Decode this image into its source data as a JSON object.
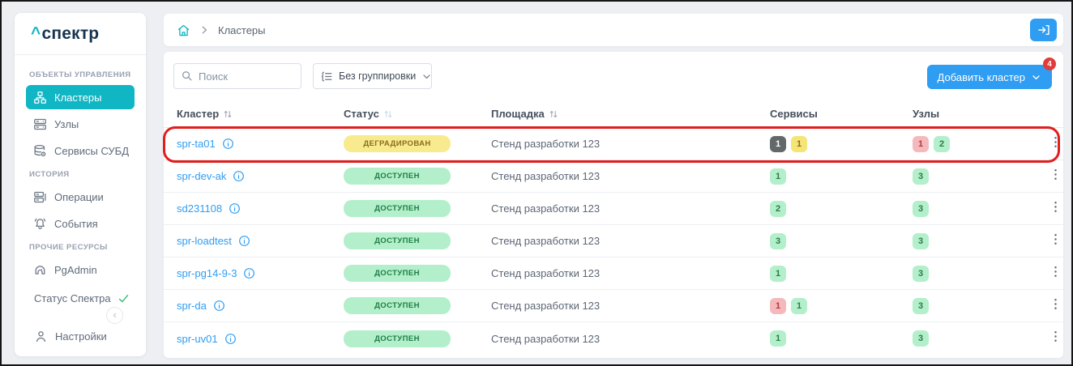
{
  "app": {
    "logo_caret": "^",
    "logo_text": "спектр"
  },
  "colors": {
    "accent_teal": "#11b6c5",
    "link_blue": "#2f9df2",
    "button_blue": "#2f9df2",
    "notification_red": "#e13c3c",
    "annotation_red": "#e11d1d",
    "status": {
      "degraded": {
        "bg": "#f8eb8f",
        "text": "#8a6d1e"
      },
      "available": {
        "bg": "#b3efca",
        "text": "#1e7d46"
      }
    },
    "badge": {
      "dark": {
        "bg": "#636869",
        "text": "#ffffff"
      },
      "yellow": {
        "bg": "#f5e476",
        "text": "#8a6d1e"
      },
      "green": {
        "bg": "#b3efca",
        "text": "#2b7c4c"
      },
      "red": {
        "bg": "#f5b9bc",
        "text": "#ad3d40"
      }
    }
  },
  "sidebar": {
    "sections": [
      {
        "label": "ОБЪЕКТЫ УПРАВЛЕНИЯ",
        "items": [
          {
            "label": "Кластеры",
            "icon": "clusters-icon",
            "active": true
          },
          {
            "label": "Узлы",
            "icon": "nodes-icon",
            "active": false
          },
          {
            "label": "Сервисы СУБД",
            "icon": "db-services-icon",
            "active": false
          }
        ]
      },
      {
        "label": "ИСТОРИЯ",
        "items": [
          {
            "label": "Операции",
            "icon": "operations-icon",
            "active": false
          },
          {
            "label": "События",
            "icon": "events-icon",
            "active": false
          }
        ]
      },
      {
        "label": "ПРОЧИЕ РЕСУРСЫ",
        "items": [
          {
            "label": "PgAdmin",
            "icon": "pgadmin-icon",
            "active": false
          }
        ]
      }
    ],
    "status_link": {
      "label": "Статус Спектра",
      "state_icon": "check-icon"
    },
    "collapse_icon": "chevron-left-icon",
    "settings": {
      "label": "Настройки",
      "icon": "user-icon"
    }
  },
  "breadcrumb": {
    "home_icon": "home-icon",
    "separator_icon": "chevron-right-icon",
    "current": "Кластеры"
  },
  "header_actions": {
    "login_icon": "login-icon"
  },
  "toolbar": {
    "search": {
      "placeholder": "Поиск",
      "icon": "search-icon"
    },
    "grouping": {
      "value": "Без группировки",
      "icon": "grouping-icon",
      "chevron_icon": "chevron-down-icon"
    },
    "add_button": {
      "label": "Добавить кластер",
      "chevron_icon": "chevron-down-icon",
      "badge_count": "4"
    }
  },
  "table": {
    "columns": [
      {
        "label": "Кластер",
        "sortable": true
      },
      {
        "label": "Статус",
        "sortable": true
      },
      {
        "label": "Площадка",
        "sortable": true
      },
      {
        "label": "Сервисы",
        "sortable": false
      },
      {
        "label": "Узлы",
        "sortable": false
      }
    ],
    "rows": [
      {
        "name": "spr-ta01",
        "info": true,
        "highlighted": true,
        "status": {
          "label": "ДЕГРАДИРОВАН",
          "type": "degraded"
        },
        "site": "Стенд разработки 123",
        "services": [
          {
            "value": "1",
            "type": "dark"
          },
          {
            "value": "1",
            "type": "yellow"
          }
        ],
        "nodes": [
          {
            "value": "1",
            "type": "red"
          },
          {
            "value": "2",
            "type": "green"
          }
        ]
      },
      {
        "name": "spr-dev-ak",
        "info": false,
        "highlighted": false,
        "status": {
          "label": "ДОСТУПЕН",
          "type": "available"
        },
        "site": "Стенд разработки 123",
        "services": [
          {
            "value": "1",
            "type": "green"
          }
        ],
        "nodes": [
          {
            "value": "3",
            "type": "green"
          }
        ]
      },
      {
        "name": "sd231108",
        "info": false,
        "highlighted": false,
        "status": {
          "label": "ДОСТУПЕН",
          "type": "available"
        },
        "site": "Стенд разработки 123",
        "services": [
          {
            "value": "2",
            "type": "green"
          }
        ],
        "nodes": [
          {
            "value": "3",
            "type": "green"
          }
        ]
      },
      {
        "name": "spr-loadtest",
        "info": false,
        "highlighted": false,
        "status": {
          "label": "ДОСТУПЕН",
          "type": "available"
        },
        "site": "Стенд разработки 123",
        "services": [
          {
            "value": "3",
            "type": "green"
          }
        ],
        "nodes": [
          {
            "value": "3",
            "type": "green"
          }
        ]
      },
      {
        "name": "spr-pg14-9-3",
        "info": false,
        "highlighted": false,
        "status": {
          "label": "ДОСТУПЕН",
          "type": "available"
        },
        "site": "Стенд разработки 123",
        "services": [
          {
            "value": "1",
            "type": "green"
          }
        ],
        "nodes": [
          {
            "value": "3",
            "type": "green"
          }
        ]
      },
      {
        "name": "spr-da",
        "info": false,
        "highlighted": false,
        "status": {
          "label": "ДОСТУПЕН",
          "type": "available"
        },
        "site": "Стенд разработки 123",
        "services": [
          {
            "value": "1",
            "type": "red"
          },
          {
            "value": "1",
            "type": "green"
          }
        ],
        "nodes": [
          {
            "value": "3",
            "type": "green"
          }
        ]
      },
      {
        "name": "spr-uv01",
        "info": false,
        "highlighted": false,
        "status": {
          "label": "ДОСТУПЕН",
          "type": "available"
        },
        "site": "Стенд разработки 123",
        "services": [
          {
            "value": "1",
            "type": "green"
          }
        ],
        "nodes": [
          {
            "value": "3",
            "type": "green"
          }
        ]
      }
    ]
  }
}
